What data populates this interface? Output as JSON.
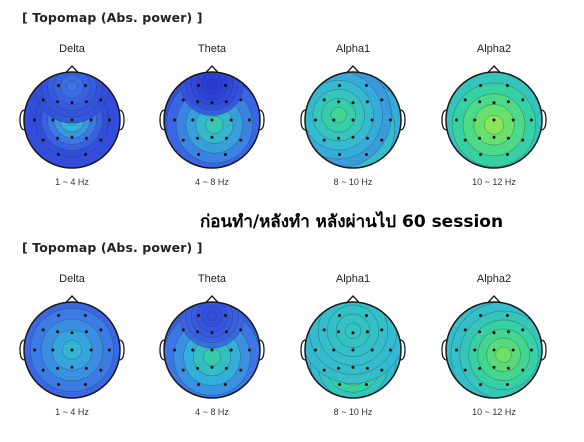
{
  "sections": [
    {
      "title": "[ Topomap (Abs. power) ]",
      "maps": [
        {
          "band": "Delta",
          "range": "1 ~ 4 Hz",
          "hotspots": [
            {
              "u": 0.0,
              "v": 0.05,
              "level": 0.95,
              "spread": 0.14
            },
            {
              "u": 0.0,
              "v": 0.0,
              "level": 0.35,
              "spread": 0.35
            },
            {
              "u": 0.0,
              "v": -0.7,
              "level": 0.15,
              "spread": 0.35
            }
          ],
          "base": 0.05
        },
        {
          "band": "Theta",
          "range": "4 ~ 8 Hz",
          "hotspots": [
            {
              "u": 0.05,
              "v": 0.1,
              "level": 0.38,
              "spread": 0.55
            },
            {
              "u": 0.0,
              "v": -0.75,
              "level": 0.0,
              "spread": 0.3
            }
          ],
          "base": 0.06
        },
        {
          "band": "Alpha1",
          "range": "8 ~ 10 Hz",
          "hotspots": [
            {
              "u": 0.0,
              "v": 0.2,
              "level": 0.48,
              "spread": 0.6
            },
            {
              "u": -0.3,
              "v": -0.1,
              "level": 0.45,
              "spread": 0.5
            }
          ],
          "base": 0.22
        },
        {
          "band": "Alpha2",
          "range": "10 ~ 12 Hz",
          "hotspots": [
            {
              "u": 0.05,
              "v": 0.05,
              "level": 0.85,
              "spread": 0.18
            },
            {
              "u": 0.0,
              "v": 0.1,
              "level": 0.6,
              "spread": 0.6
            }
          ],
          "base": 0.3
        }
      ]
    },
    {
      "title": "[ Topomap (Abs. power) ]",
      "maps": [
        {
          "band": "Delta",
          "range": "1 ~ 4 Hz",
          "hotspots": [
            {
              "u": -0.5,
              "v": 0.0,
              "level": 0.45,
              "spread": 0.4
            },
            {
              "u": 0.4,
              "v": 0.4,
              "level": 0.05,
              "spread": 0.2
            },
            {
              "u": 0.0,
              "v": 0.0,
              "level": 0.3,
              "spread": 0.6
            }
          ],
          "base": 0.08
        },
        {
          "band": "Theta",
          "range": "4 ~ 8 Hz",
          "hotspots": [
            {
              "u": 0.0,
              "v": 0.15,
              "level": 0.4,
              "spread": 0.55
            },
            {
              "u": 0.0,
              "v": -0.7,
              "level": 0.05,
              "spread": 0.3
            }
          ],
          "base": 0.1
        },
        {
          "band": "Alpha1",
          "range": "8 ~ 10 Hz",
          "hotspots": [
            {
              "u": 0.0,
              "v": 0.5,
              "level": 0.95,
              "spread": 0.14
            },
            {
              "u": 0.0,
              "v": 0.3,
              "level": 0.6,
              "spread": 0.4
            },
            {
              "u": 0.0,
              "v": -0.4,
              "level": 0.35,
              "spread": 0.5
            }
          ],
          "base": 0.3
        },
        {
          "band": "Alpha2",
          "range": "10 ~ 12 Hz",
          "hotspots": [
            {
              "u": 0.45,
              "v": 0.05,
              "level": 0.95,
              "spread": 0.12
            },
            {
              "u": 0.2,
              "v": 0.1,
              "level": 0.55,
              "spread": 0.5
            }
          ],
          "base": 0.32
        }
      ]
    }
  ],
  "caption": "ก่อนทำ/หลังทำ หลังผ่านไป  60 session",
  "colors": {
    "scale": [
      "#2b38d6",
      "#3f72e6",
      "#34b6d8",
      "#37d49a",
      "#7fe45a",
      "#e2e838",
      "#f3a23a",
      "#e83b2a"
    ],
    "outline": "#1a1a1a",
    "electrode": "#111111"
  }
}
